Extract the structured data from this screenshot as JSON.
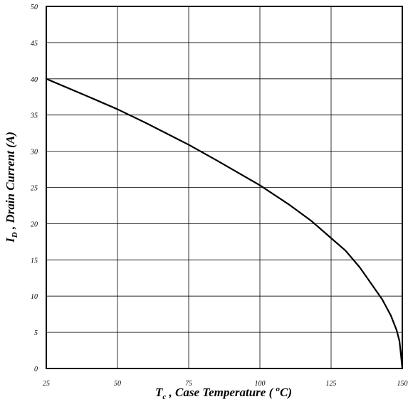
{
  "chart_data": {
    "type": "line",
    "title": "",
    "xlabel": {
      "symbol": "T",
      "subscript": "c",
      "text": " , Case Temperature ( ",
      "superscript": "o",
      "unit": "C)"
    },
    "ylabel": {
      "symbol": "I",
      "subscript": "D",
      "text": " , Drain Current (A)"
    },
    "xlim": [
      25,
      150
    ],
    "ylim": [
      0,
      50
    ],
    "xticks": [
      25,
      50,
      75,
      100,
      125,
      150
    ],
    "yticks": [
      0,
      5,
      10,
      15,
      20,
      25,
      30,
      35,
      40,
      45,
      50
    ],
    "grid": true,
    "line_color": "#000000",
    "series": [
      {
        "x": [
          25,
          40,
          50,
          60,
          75,
          85,
          100,
          110,
          118,
          125,
          130,
          135,
          140,
          143,
          146,
          148,
          149,
          149.5,
          150
        ],
        "y": [
          40,
          37.5,
          35.8,
          33.9,
          30.9,
          28.7,
          25.3,
          22.7,
          20.4,
          18.0,
          16.3,
          14.0,
          11.2,
          9.5,
          7.3,
          5.3,
          3.8,
          2.0,
          0
        ]
      }
    ]
  }
}
